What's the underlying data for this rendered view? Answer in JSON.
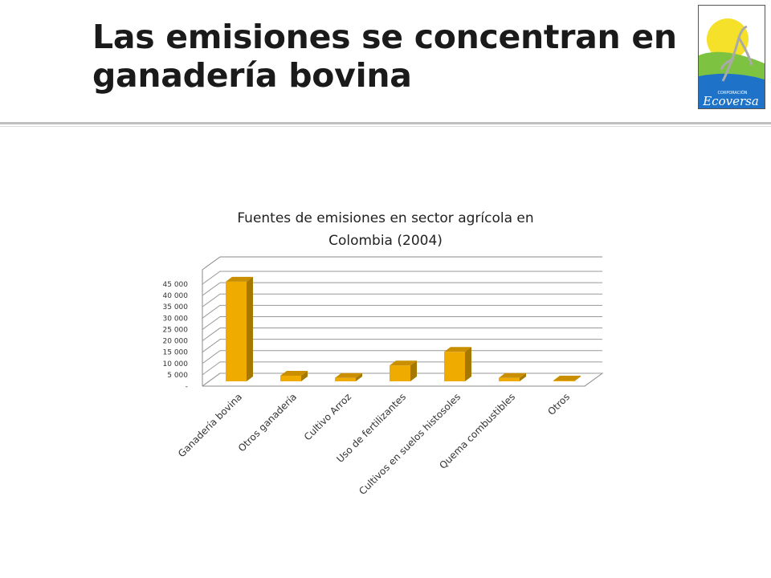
{
  "slide": {
    "title_line1": "Las emisiones se concentran en",
    "title_line2": "ganadería bovina"
  },
  "logo": {
    "small_text": "CORPORACIÓN",
    "name": "Ecoversa",
    "colors": {
      "sun": "#f5e02a",
      "green": "#7ec242",
      "water": "#1e73c8",
      "bird": "#d8d8d8"
    }
  },
  "chart_data": {
    "type": "bar",
    "title_line1": "Fuentes de emisiones en sector agrícola en",
    "title_line2": "Colombia (2004)",
    "categories": [
      "Ganadería bovina",
      "Otros ganadería",
      "Cultivo Arroz",
      "Uso de fertilizantes",
      "Cultivos en suelos histosoles",
      "Quema combustibles",
      "Otros"
    ],
    "values": [
      44000,
      2500,
      1500,
      7000,
      13000,
      1500,
      200
    ],
    "yticks": [
      "-",
      "5 000",
      "10 000",
      "15 000",
      "20 000",
      "25 000",
      "30 000",
      "35 000",
      "40 000",
      "45 000"
    ],
    "ylim": [
      0,
      45000
    ],
    "grid": true,
    "bar_color": "#f0ab00",
    "style": "3d"
  }
}
